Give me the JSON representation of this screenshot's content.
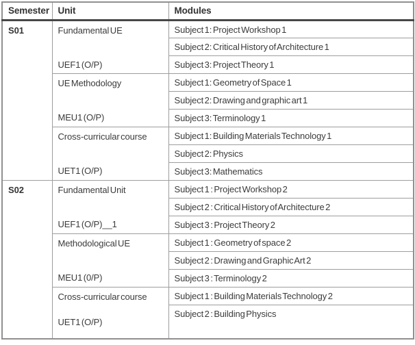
{
  "colors": {
    "text": "#3b3b3b",
    "border_inner": "#9d9d9d",
    "border_outer": "#8f8f8f",
    "header_rule": "#474747"
  },
  "table": {
    "headers": [
      "Semester",
      "Unit",
      "Modules"
    ],
    "groups": [
      {
        "semester": "S01",
        "units": [
          {
            "name": "Fundamental UE",
            "code": "UEF1 (O/P)",
            "modules": [
              "Subject 1: Project Workshop 1",
              "Subject 2: Critical History of Architecture 1",
              "Subject 3: Project Theory 1"
            ]
          },
          {
            "name": "UE Methodology",
            "code": "MEU1 (O/P)",
            "modules": [
              "Subject 1: Geometry of Space 1",
              "Subject 2: Drawing and graphic art 1",
              "Subject 3: Terminology 1"
            ]
          },
          {
            "name": "Cross-curricular course",
            "code": "UET1 (O/P)",
            "modules": [
              "Subject 1: Building Materials Technology 1",
              "Subject 2: Physics",
              "Subject 3: Mathematics"
            ]
          }
        ]
      },
      {
        "semester": "S02",
        "units": [
          {
            "name": "Fundamental Unit",
            "code": "UEF1 (O/P)__1",
            "modules": [
              "Subject 1 : Project Workshop 2",
              "Subject 2 : Critical History of Architecture 2",
              "Subject 3 : Project Theory 2"
            ]
          },
          {
            "name": "Methodological UE",
            "code": "MEU1 (0/P)",
            "modules": [
              "Subject 1 : Geometry of space 2",
              "Subject 2 : Drawing and Graphic Art 2",
              "Subject 3 : Terminology 2"
            ]
          },
          {
            "name": "Cross-curricular course",
            "code": "UET1 (O/P)",
            "modules": [
              "Subject 1 : Building Materials Technology 2",
              "Subject 2 : Building Physics"
            ]
          }
        ]
      }
    ]
  }
}
